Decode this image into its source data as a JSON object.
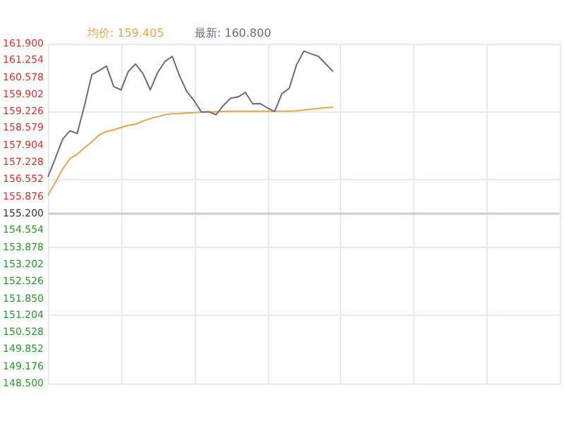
{
  "chart_data": {
    "type": "line",
    "categories": [
      null,
      null,
      null,
      null,
      null,
      null,
      null,
      null,
      null,
      null,
      null,
      null,
      null,
      null,
      null,
      null,
      null,
      null,
      null,
      null,
      null,
      null,
      null,
      null,
      null,
      null,
      null,
      null,
      null,
      null,
      null,
      null,
      null,
      null,
      null,
      null,
      null,
      null,
      null,
      null,
      null,
      null,
      null,
      null,
      null,
      null,
      null,
      null,
      null,
      null,
      null,
      null,
      null,
      null,
      null,
      null,
      null,
      null,
      null,
      null,
      null,
      null,
      null,
      null,
      null,
      null,
      null,
      null,
      null,
      null,
      null
    ],
    "series": [
      {
        "name": "均价: 159.405",
        "color": "#e8a64a",
        "values": [
          155.93,
          156.42,
          156.95,
          157.37,
          157.54,
          157.8,
          158.03,
          158.3,
          158.44,
          158.5,
          158.6,
          158.68,
          158.73,
          158.85,
          158.95,
          159.02,
          159.1,
          159.14,
          159.15,
          159.17,
          159.18,
          159.2,
          159.21,
          159.22,
          159.23,
          159.24,
          159.24,
          159.24,
          159.24,
          159.24,
          159.24,
          159.24,
          159.24,
          159.24,
          159.25,
          159.29,
          159.32,
          159.35,
          159.38,
          159.4,
          null,
          null,
          null,
          null,
          null,
          null,
          null,
          null,
          null,
          null,
          null,
          null,
          null,
          null,
          null,
          null,
          null,
          null,
          null,
          null,
          null,
          null,
          null,
          null,
          null,
          null,
          null,
          null,
          null,
          null,
          null
        ]
      },
      {
        "name": "最新: 160.800",
        "color": "#6b6b7b",
        "values": [
          156.65,
          157.37,
          158.13,
          158.47,
          158.36,
          159.46,
          160.68,
          160.84,
          161.02,
          160.21,
          160.08,
          160.81,
          161.1,
          160.72,
          160.08,
          160.76,
          161.2,
          161.4,
          160.63,
          160.01,
          159.65,
          159.2,
          159.22,
          159.1,
          159.47,
          159.75,
          159.8,
          159.98,
          159.53,
          159.54,
          159.37,
          159.23,
          159.93,
          160.14,
          161.07,
          161.61,
          161.5,
          161.4,
          161.1,
          160.8,
          null,
          null,
          null,
          null,
          null,
          null,
          null,
          null,
          null,
          null,
          null,
          null,
          null,
          null,
          null,
          null,
          null,
          null,
          null,
          null,
          null,
          null,
          null,
          null,
          null,
          null,
          null,
          null,
          null,
          null,
          null
        ]
      }
    ],
    "ylim": [
      148.5,
      161.9
    ],
    "yticks": [
      {
        "value": 161.9,
        "label": "161.900"
      },
      {
        "value": 161.254,
        "label": "161.254"
      },
      {
        "value": 160.578,
        "label": "160.578"
      },
      {
        "value": 159.902,
        "label": "159.902"
      },
      {
        "value": 159.226,
        "label": "159.226"
      },
      {
        "value": 158.579,
        "label": "158.579"
      },
      {
        "value": 157.904,
        "label": "157.904"
      },
      {
        "value": 157.228,
        "label": "157.228"
      },
      {
        "value": 156.552,
        "label": "156.552"
      },
      {
        "value": 155.876,
        "label": "155.876"
      },
      {
        "value": 155.2,
        "label": "155.200"
      },
      {
        "value": 154.554,
        "label": "154.554"
      },
      {
        "value": 153.878,
        "label": "153.878"
      },
      {
        "value": 153.202,
        "label": "153.202"
      },
      {
        "value": 152.526,
        "label": "152.526"
      },
      {
        "value": 151.85,
        "label": "151.850"
      },
      {
        "value": 151.204,
        "label": "151.204"
      },
      {
        "value": 150.528,
        "label": "150.528"
      },
      {
        "value": 149.852,
        "label": "149.852"
      },
      {
        "value": 149.176,
        "label": "149.176"
      },
      {
        "value": 148.5,
        "label": "148.500"
      }
    ],
    "ref_lines": [
      {
        "axis": "y",
        "value": 155.2,
        "color": "#c8c8e8"
      }
    ],
    "tick_labels": "y",
    "grid": true,
    "marker": "none",
    "line_style": "solid"
  }
}
